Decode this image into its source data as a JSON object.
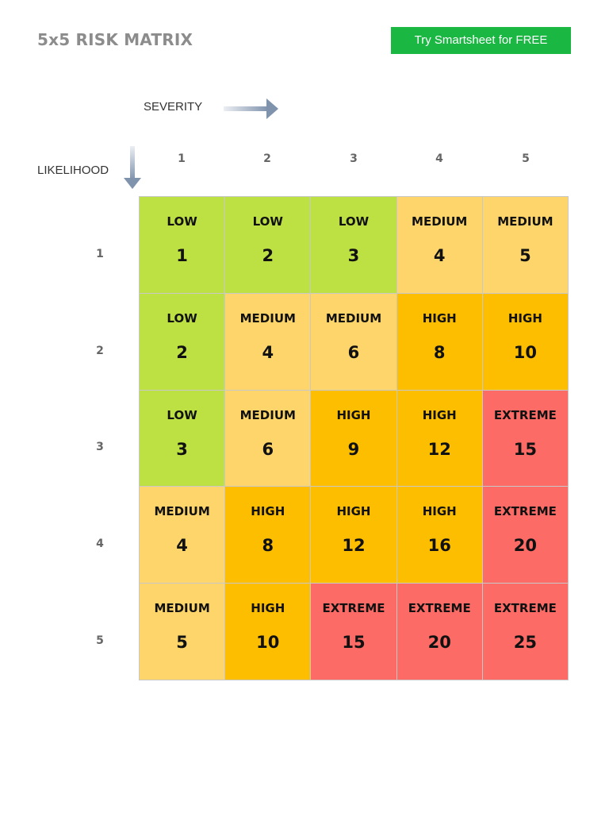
{
  "header": {
    "title": "5x5 RISK MATRIX",
    "cta_label": "Try Smartsheet for FREE"
  },
  "axes": {
    "severity_label": "SEVERITY",
    "likelihood_label": "LIKELIHOOD",
    "columns": [
      "1",
      "2",
      "3",
      "4",
      "5"
    ],
    "rows": [
      "1",
      "2",
      "3",
      "4",
      "5"
    ]
  },
  "colors": {
    "LOW": "#bde043",
    "MEDIUM": "#fdd56a",
    "HIGH": "#fdbe00",
    "EXTREME": "#fd6b66",
    "cta": "#1ab743",
    "arrow": "#8093ad"
  },
  "matrix": [
    [
      {
        "level": "LOW",
        "score": "1"
      },
      {
        "level": "LOW",
        "score": "2"
      },
      {
        "level": "LOW",
        "score": "3"
      },
      {
        "level": "MEDIUM",
        "score": "4"
      },
      {
        "level": "MEDIUM",
        "score": "5"
      }
    ],
    [
      {
        "level": "LOW",
        "score": "2"
      },
      {
        "level": "MEDIUM",
        "score": "4"
      },
      {
        "level": "MEDIUM",
        "score": "6"
      },
      {
        "level": "HIGH",
        "score": "8"
      },
      {
        "level": "HIGH",
        "score": "10"
      }
    ],
    [
      {
        "level": "LOW",
        "score": "3"
      },
      {
        "level": "MEDIUM",
        "score": "6"
      },
      {
        "level": "HIGH",
        "score": "9"
      },
      {
        "level": "HIGH",
        "score": "12"
      },
      {
        "level": "EXTREME",
        "score": "15"
      }
    ],
    [
      {
        "level": "MEDIUM",
        "score": "4"
      },
      {
        "level": "HIGH",
        "score": "8"
      },
      {
        "level": "HIGH",
        "score": "12"
      },
      {
        "level": "HIGH",
        "score": "16"
      },
      {
        "level": "EXTREME",
        "score": "20"
      }
    ],
    [
      {
        "level": "MEDIUM",
        "score": "5"
      },
      {
        "level": "HIGH",
        "score": "10"
      },
      {
        "level": "EXTREME",
        "score": "15"
      },
      {
        "level": "EXTREME",
        "score": "20"
      },
      {
        "level": "EXTREME",
        "score": "25"
      }
    ]
  ]
}
